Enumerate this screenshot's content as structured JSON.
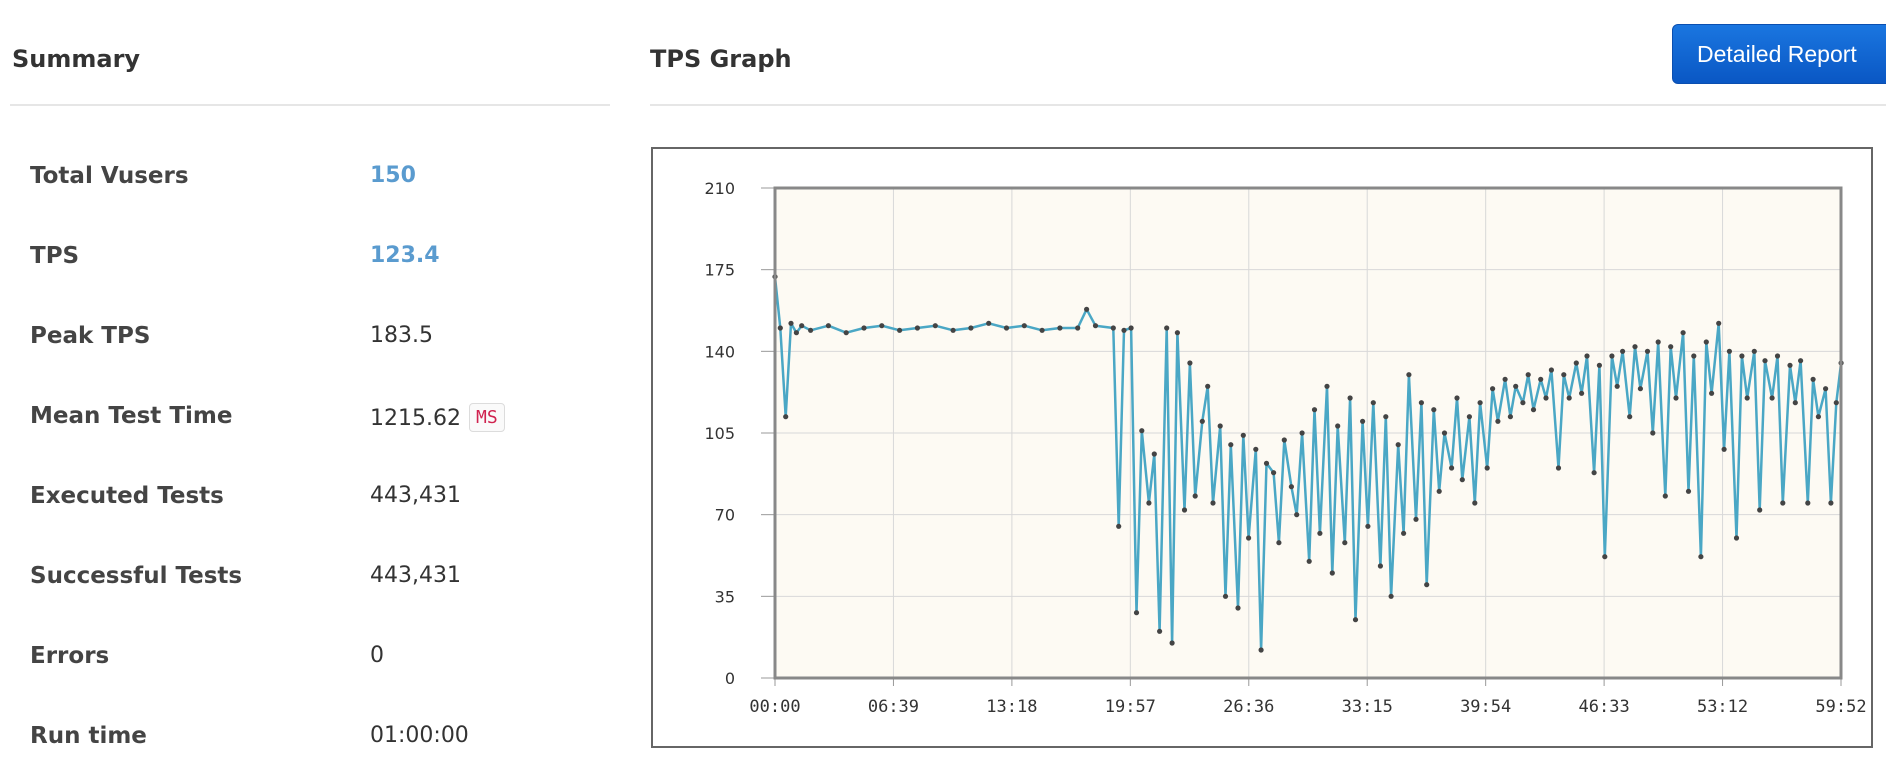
{
  "summary": {
    "title": "Summary",
    "rows": [
      {
        "label": "Total Vusers",
        "value": "150",
        "highlight": true
      },
      {
        "label": "TPS",
        "value": "123.4",
        "highlight": true
      },
      {
        "label": "Peak TPS",
        "value": "183.5"
      },
      {
        "label": "Mean Test Time",
        "value": "1215.62",
        "unit": "MS"
      },
      {
        "label": "Executed Tests",
        "value": "443,431"
      },
      {
        "label": "Successful Tests",
        "value": "443,431"
      },
      {
        "label": "Errors",
        "value": "0"
      },
      {
        "label": "Run time",
        "value": "01:00:00"
      }
    ]
  },
  "graph": {
    "title": "TPS Graph",
    "report_button_label": "Detailed Report"
  },
  "colors": {
    "accent_value": "#5a9bcf",
    "button": "#0a57c4",
    "series_line": "#4aa7c5",
    "series_point": "#444444",
    "plot_background": "#fdfaf3",
    "unit_badge_text": "#d0234f"
  },
  "chart_data": {
    "type": "line",
    "title": "",
    "xlabel": "",
    "ylabel": "",
    "ylim": [
      0,
      210
    ],
    "yticks": [
      "0",
      "35",
      "70",
      "105",
      "140",
      "175",
      "210"
    ],
    "xticks": [
      "00:00",
      "06:39",
      "13:18",
      "19:57",
      "26:36",
      "33:15",
      "39:54",
      "46:33",
      "53:12",
      "59:52"
    ],
    "x_unit": "minutes",
    "grid": true,
    "legend": "none",
    "series": [
      {
        "values_sampled": [
          [
            0.0,
            172
          ],
          [
            0.3,
            150
          ],
          [
            0.6,
            112
          ],
          [
            0.9,
            152
          ],
          [
            1.2,
            148
          ],
          [
            1.5,
            151
          ],
          [
            2.0,
            149
          ],
          [
            3.0,
            151
          ],
          [
            4.0,
            148
          ],
          [
            5.0,
            150
          ],
          [
            6.0,
            151
          ],
          [
            7.0,
            149
          ],
          [
            8.0,
            150
          ],
          [
            9.0,
            151
          ],
          [
            10.0,
            149
          ],
          [
            11.0,
            150
          ],
          [
            12.0,
            152
          ],
          [
            13.0,
            150
          ],
          [
            14.0,
            151
          ],
          [
            15.0,
            149
          ],
          [
            16.0,
            150
          ],
          [
            17.0,
            150
          ],
          [
            17.5,
            158
          ],
          [
            18.0,
            151
          ],
          [
            19.0,
            150
          ],
          [
            19.3,
            65
          ],
          [
            19.6,
            149
          ],
          [
            20.0,
            150
          ],
          [
            20.3,
            28
          ],
          [
            20.6,
            106
          ],
          [
            21.0,
            75
          ],
          [
            21.3,
            96
          ],
          [
            21.6,
            20
          ],
          [
            22.0,
            150
          ],
          [
            22.3,
            15
          ],
          [
            22.6,
            148
          ],
          [
            23.0,
            72
          ],
          [
            23.3,
            135
          ],
          [
            23.6,
            78
          ],
          [
            24.0,
            110
          ],
          [
            24.3,
            125
          ],
          [
            24.6,
            75
          ],
          [
            25.0,
            108
          ],
          [
            25.3,
            35
          ],
          [
            25.6,
            100
          ],
          [
            26.0,
            30
          ],
          [
            26.3,
            104
          ],
          [
            26.6,
            60
          ],
          [
            27.0,
            98
          ],
          [
            27.3,
            12
          ],
          [
            27.6,
            92
          ],
          [
            28.0,
            88
          ],
          [
            28.3,
            58
          ],
          [
            28.6,
            102
          ],
          [
            29.0,
            82
          ],
          [
            29.3,
            70
          ],
          [
            29.6,
            105
          ],
          [
            30.0,
            50
          ],
          [
            30.3,
            115
          ],
          [
            30.6,
            62
          ],
          [
            31.0,
            125
          ],
          [
            31.3,
            45
          ],
          [
            31.6,
            108
          ],
          [
            32.0,
            58
          ],
          [
            32.3,
            120
          ],
          [
            32.6,
            25
          ],
          [
            33.0,
            110
          ],
          [
            33.3,
            65
          ],
          [
            33.6,
            118
          ],
          [
            34.0,
            48
          ],
          [
            34.3,
            112
          ],
          [
            34.6,
            35
          ],
          [
            35.0,
            100
          ],
          [
            35.3,
            62
          ],
          [
            35.6,
            130
          ],
          [
            36.0,
            68
          ],
          [
            36.3,
            118
          ],
          [
            36.6,
            40
          ],
          [
            37.0,
            115
          ],
          [
            37.3,
            80
          ],
          [
            37.6,
            105
          ],
          [
            38.0,
            90
          ],
          [
            38.3,
            120
          ],
          [
            38.6,
            85
          ],
          [
            39.0,
            112
          ],
          [
            39.3,
            75
          ],
          [
            39.6,
            118
          ],
          [
            40.0,
            90
          ],
          [
            40.3,
            124
          ],
          [
            40.6,
            110
          ],
          [
            41.0,
            128
          ],
          [
            41.3,
            112
          ],
          [
            41.6,
            125
          ],
          [
            42.0,
            118
          ],
          [
            42.3,
            130
          ],
          [
            42.6,
            115
          ],
          [
            43.0,
            128
          ],
          [
            43.3,
            120
          ],
          [
            43.6,
            132
          ],
          [
            44.0,
            90
          ],
          [
            44.3,
            130
          ],
          [
            44.6,
            120
          ],
          [
            45.0,
            135
          ],
          [
            45.3,
            122
          ],
          [
            45.6,
            138
          ],
          [
            46.0,
            88
          ],
          [
            46.3,
            134
          ],
          [
            46.6,
            52
          ],
          [
            47.0,
            138
          ],
          [
            47.3,
            125
          ],
          [
            47.6,
            140
          ],
          [
            48.0,
            112
          ],
          [
            48.3,
            142
          ],
          [
            48.6,
            124
          ],
          [
            49.0,
            140
          ],
          [
            49.3,
            105
          ],
          [
            49.6,
            144
          ],
          [
            50.0,
            78
          ],
          [
            50.3,
            142
          ],
          [
            50.6,
            120
          ],
          [
            51.0,
            148
          ],
          [
            51.3,
            80
          ],
          [
            51.6,
            138
          ],
          [
            52.0,
            52
          ],
          [
            52.3,
            144
          ],
          [
            52.6,
            122
          ],
          [
            53.0,
            152
          ],
          [
            53.3,
            98
          ],
          [
            53.6,
            140
          ],
          [
            54.0,
            60
          ],
          [
            54.3,
            138
          ],
          [
            54.6,
            120
          ],
          [
            55.0,
            140
          ],
          [
            55.3,
            72
          ],
          [
            55.6,
            136
          ],
          [
            56.0,
            120
          ],
          [
            56.3,
            138
          ],
          [
            56.6,
            75
          ],
          [
            57.0,
            134
          ],
          [
            57.3,
            118
          ],
          [
            57.6,
            136
          ],
          [
            58.0,
            75
          ],
          [
            58.3,
            128
          ],
          [
            58.6,
            112
          ],
          [
            59.0,
            124
          ],
          [
            59.3,
            75
          ],
          [
            59.6,
            118
          ],
          [
            59.87,
            135
          ]
        ]
      }
    ]
  }
}
